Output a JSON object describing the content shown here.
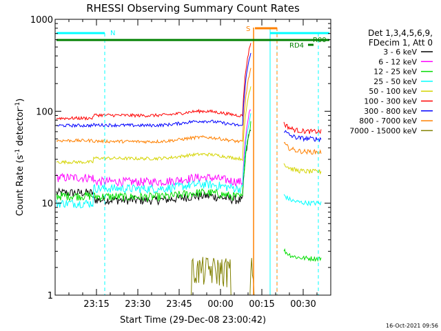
{
  "chart_data": {
    "type": "line",
    "title": "RHESSI Observing Summary Count Rates",
    "xlabel": "Start Time (29-Dec-08 23:00:42)",
    "ylabel_main": "Count Rate (s",
    "ylabel_sup1": "-1",
    "ylabel_mid": " detector",
    "ylabel_sup2": "-1",
    "ylabel_end": ")",
    "y_scale": "log",
    "ylim": [
      1,
      1000
    ],
    "xlim": [
      "23:00",
      "00:40"
    ],
    "xticks": [
      "23:15",
      "23:30",
      "23:45",
      "00:00",
      "00:15",
      "00:30"
    ],
    "yticks": [
      "1",
      "10",
      "100",
      "1000"
    ],
    "legend_header": [
      "Det 1,3,4,5,6,9,",
      "FDecim 1, Att 0"
    ],
    "legend_placement": "right",
    "series": [
      {
        "name": "3 - 6 keV",
        "color": "#000000",
        "level_start": 13,
        "level_mid": 12,
        "level_end": null
      },
      {
        "name": "6 - 12 keV",
        "color": "#ff00ff",
        "level_start": 19,
        "level_mid": 19,
        "level_end": null
      },
      {
        "name": "12 - 25 keV",
        "color": "#00dd00",
        "level_start": 12,
        "level_mid": 13,
        "level_end": 2.5
      },
      {
        "name": "25 - 50 keV",
        "color": "#00ffff",
        "level_start": 10,
        "level_mid": 16,
        "level_end": 10
      },
      {
        "name": "50 - 100 keV",
        "color": "#d4d400",
        "level_start": 28,
        "level_mid": 34,
        "level_end": 22
      },
      {
        "name": "100 - 300 keV",
        "color": "#ff0000",
        "level_start": 84,
        "level_mid": 100,
        "level_end": 60
      },
      {
        "name": "300 - 800 keV",
        "color": "#0000ff",
        "level_start": 70,
        "level_mid": 78,
        "level_end": 50
      },
      {
        "name": "800 - 7000 keV",
        "color": "#ff8000",
        "level_start": 48,
        "level_mid": 52,
        "level_end": 36
      },
      {
        "name": "7000 - 15000 keV",
        "color": "#808000",
        "level_start": 1,
        "level_mid": 1,
        "level_end": 1
      }
    ],
    "flags": [
      {
        "label": "N",
        "color": "#00ffff"
      },
      {
        "label": "S",
        "color": "#ff8000"
      },
      {
        "label": "R00",
        "color": "#008000"
      },
      {
        "label": "RD4",
        "color": "#008000"
      }
    ],
    "timestamp": "16-Oct-2021 09:56"
  }
}
